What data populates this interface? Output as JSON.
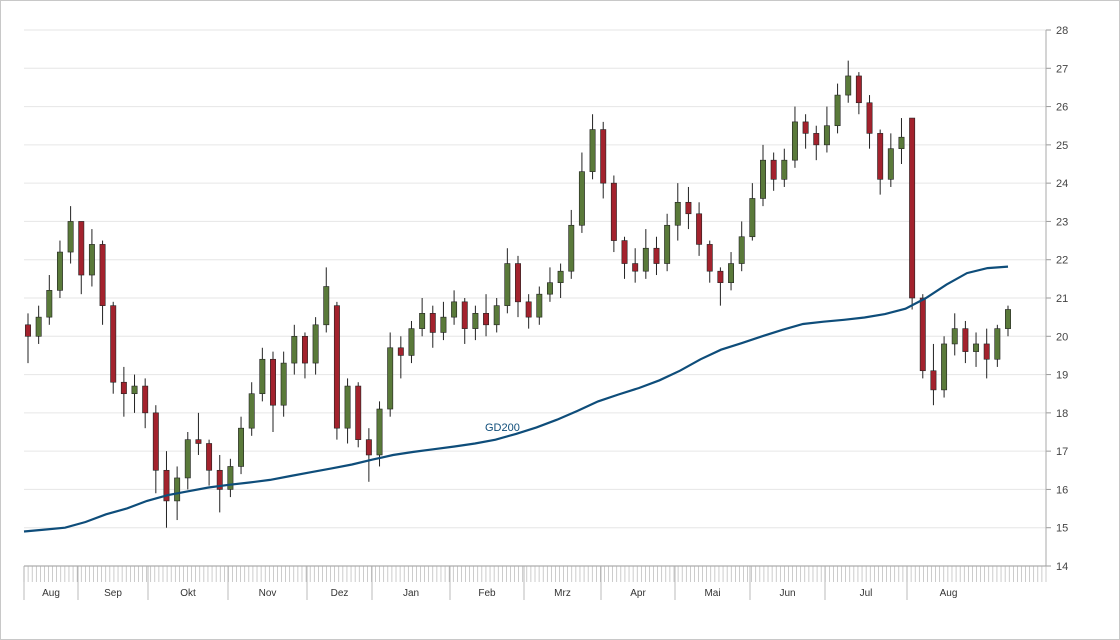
{
  "colors": {
    "up": "#5a7a3a",
    "down": "#a3222d",
    "ma": "#0e4d7a",
    "grid": "#e6e6e6"
  },
  "chart_data": {
    "type": "candlestick",
    "title": "",
    "xlabel": "",
    "ylabel": "",
    "ylim": [
      14,
      28
    ],
    "y_ticks": [
      14,
      15,
      16,
      17,
      18,
      19,
      20,
      21,
      22,
      23,
      24,
      25,
      26,
      27,
      28
    ],
    "y_axis_position": "right",
    "grid": true,
    "x_ticks": [
      "Aug",
      "Sep",
      "Okt",
      "Nov",
      "Dez",
      "Jan",
      "Feb",
      "Mrz",
      "Apr",
      "Mai",
      "Jun",
      "Jul",
      "Aug"
    ],
    "moving_average": {
      "label": "GD200",
      "values": [
        14.9,
        14.95,
        15.0,
        15.15,
        15.35,
        15.5,
        15.7,
        15.85,
        15.95,
        16.05,
        16.12,
        16.18,
        16.25,
        16.35,
        16.45,
        16.55,
        16.65,
        16.78,
        16.9,
        16.98,
        17.05,
        17.12,
        17.2,
        17.3,
        17.45,
        17.62,
        17.82,
        18.05,
        18.3,
        18.48,
        18.65,
        18.85,
        19.1,
        19.4,
        19.65,
        19.82,
        20.0,
        20.17,
        20.32,
        20.38,
        20.43,
        20.49,
        20.58,
        20.72,
        21.0,
        21.35,
        21.65,
        21.78,
        21.82
      ]
    },
    "candles": [
      [
        20.3,
        20.6,
        19.3,
        20.0
      ],
      [
        20.0,
        20.8,
        19.8,
        20.5
      ],
      [
        20.5,
        21.6,
        20.3,
        21.2
      ],
      [
        21.2,
        22.5,
        21.0,
        22.2
      ],
      [
        22.2,
        23.4,
        21.9,
        23.0
      ],
      [
        23.0,
        23.0,
        21.1,
        21.6
      ],
      [
        21.6,
        22.8,
        21.3,
        22.4
      ],
      [
        22.4,
        22.5,
        20.3,
        20.8
      ],
      [
        20.8,
        20.9,
        18.5,
        18.8
      ],
      [
        18.8,
        19.2,
        17.9,
        18.5
      ],
      [
        18.5,
        19.0,
        18.0,
        18.7
      ],
      [
        18.7,
        18.9,
        17.6,
        18.0
      ],
      [
        18.0,
        18.2,
        15.9,
        16.5
      ],
      [
        16.5,
        17.0,
        15.0,
        15.7
      ],
      [
        15.7,
        16.6,
        15.2,
        16.3
      ],
      [
        16.3,
        17.5,
        16.0,
        17.3
      ],
      [
        17.3,
        18.0,
        16.9,
        17.2
      ],
      [
        17.2,
        17.3,
        16.1,
        16.5
      ],
      [
        16.5,
        16.9,
        15.4,
        16.0
      ],
      [
        16.0,
        16.8,
        15.8,
        16.6
      ],
      [
        16.6,
        17.9,
        16.4,
        17.6
      ],
      [
        17.6,
        18.8,
        17.4,
        18.5
      ],
      [
        18.5,
        19.7,
        18.3,
        19.4
      ],
      [
        19.4,
        19.6,
        17.5,
        18.2
      ],
      [
        18.2,
        19.6,
        17.9,
        19.3
      ],
      [
        19.3,
        20.3,
        19.0,
        20.0
      ],
      [
        20.0,
        20.1,
        18.9,
        19.3
      ],
      [
        19.3,
        20.5,
        19.0,
        20.3
      ],
      [
        20.3,
        21.8,
        20.1,
        21.3
      ],
      [
        20.8,
        20.9,
        17.3,
        17.6
      ],
      [
        17.6,
        18.9,
        17.2,
        18.7
      ],
      [
        18.7,
        18.8,
        17.1,
        17.3
      ],
      [
        17.3,
        17.6,
        16.2,
        16.9
      ],
      [
        16.9,
        18.3,
        16.6,
        18.1
      ],
      [
        18.1,
        20.1,
        17.9,
        19.7
      ],
      [
        19.7,
        20.0,
        18.9,
        19.5
      ],
      [
        19.5,
        20.4,
        19.3,
        20.2
      ],
      [
        20.2,
        21.0,
        20.0,
        20.6
      ],
      [
        20.6,
        20.8,
        19.7,
        20.1
      ],
      [
        20.1,
        20.9,
        19.9,
        20.5
      ],
      [
        20.5,
        21.2,
        20.3,
        20.9
      ],
      [
        20.9,
        21.0,
        19.8,
        20.2
      ],
      [
        20.2,
        20.8,
        19.9,
        20.6
      ],
      [
        20.6,
        21.1,
        20.0,
        20.3
      ],
      [
        20.3,
        21.0,
        20.1,
        20.8
      ],
      [
        20.8,
        22.3,
        20.6,
        21.9
      ],
      [
        21.9,
        22.1,
        20.5,
        20.9
      ],
      [
        20.9,
        21.1,
        20.2,
        20.5
      ],
      [
        20.5,
        21.3,
        20.3,
        21.1
      ],
      [
        21.1,
        21.8,
        20.9,
        21.4
      ],
      [
        21.4,
        21.9,
        21.0,
        21.7
      ],
      [
        21.7,
        23.3,
        21.5,
        22.9
      ],
      [
        22.9,
        24.8,
        22.7,
        24.3
      ],
      [
        24.3,
        25.8,
        24.1,
        25.4
      ],
      [
        25.4,
        25.6,
        23.6,
        24.0
      ],
      [
        24.0,
        24.2,
        22.2,
        22.5
      ],
      [
        22.5,
        22.6,
        21.5,
        21.9
      ],
      [
        21.9,
        22.3,
        21.4,
        21.7
      ],
      [
        21.7,
        22.8,
        21.5,
        22.3
      ],
      [
        22.3,
        22.6,
        21.6,
        21.9
      ],
      [
        21.9,
        23.2,
        21.7,
        22.9
      ],
      [
        22.9,
        24.0,
        22.5,
        23.5
      ],
      [
        23.5,
        23.9,
        22.8,
        23.2
      ],
      [
        23.2,
        23.5,
        22.1,
        22.4
      ],
      [
        22.4,
        22.5,
        21.4,
        21.7
      ],
      [
        21.7,
        21.8,
        20.8,
        21.4
      ],
      [
        21.4,
        22.2,
        21.2,
        21.9
      ],
      [
        21.9,
        23.0,
        21.7,
        22.6
      ],
      [
        22.6,
        24.0,
        22.5,
        23.6
      ],
      [
        23.6,
        25.0,
        23.4,
        24.6
      ],
      [
        24.6,
        24.8,
        23.8,
        24.1
      ],
      [
        24.1,
        24.9,
        23.9,
        24.6
      ],
      [
        24.6,
        26.0,
        24.4,
        25.6
      ],
      [
        25.6,
        25.8,
        24.9,
        25.3
      ],
      [
        25.3,
        25.5,
        24.6,
        25.0
      ],
      [
        25.0,
        26.0,
        24.8,
        25.5
      ],
      [
        25.5,
        26.6,
        25.3,
        26.3
      ],
      [
        26.3,
        27.2,
        26.1,
        26.8
      ],
      [
        26.8,
        26.9,
        25.8,
        26.1
      ],
      [
        26.1,
        26.3,
        24.9,
        25.3
      ],
      [
        25.3,
        25.4,
        23.7,
        24.1
      ],
      [
        24.1,
        25.3,
        23.9,
        24.9
      ],
      [
        24.9,
        25.7,
        24.5,
        25.2
      ],
      [
        25.7,
        25.7,
        20.7,
        21.0
      ],
      [
        21.0,
        21.1,
        18.9,
        19.1
      ],
      [
        19.1,
        19.8,
        18.2,
        18.6
      ],
      [
        18.6,
        20.0,
        18.4,
        19.8
      ],
      [
        19.8,
        20.6,
        19.5,
        20.2
      ],
      [
        20.2,
        20.4,
        19.3,
        19.6
      ],
      [
        19.6,
        20.1,
        19.2,
        19.8
      ],
      [
        19.8,
        20.2,
        18.9,
        19.4
      ],
      [
        19.4,
        20.3,
        19.2,
        20.2
      ],
      [
        20.2,
        20.8,
        20.0,
        20.7
      ]
    ]
  }
}
